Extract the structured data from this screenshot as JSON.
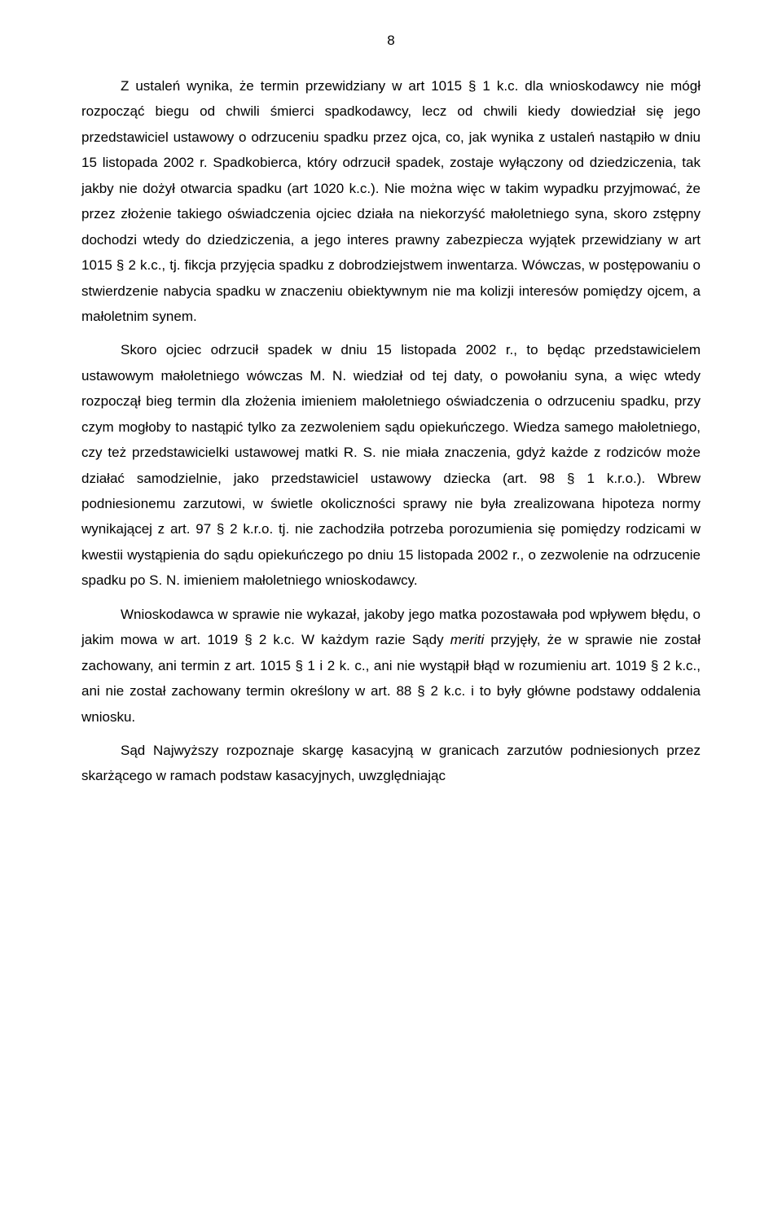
{
  "meta": {
    "page_number": "8"
  },
  "paragraphs": {
    "p1_a": "Z ustaleń wynika, że termin przewidziany w art 1015 § 1 k.c. dla wnioskodawcy nie mógł rozpocząć biegu od chwili śmierci spadkodawcy, lecz od chwili kiedy dowiedział się jego przedstawiciel ustawowy o odrzuceniu spadku przez ojca, co, jak wynika z ustaleń nastąpiło w dniu 15 listopada 2002 r. Spadkobierca, który odrzucił spadek, zostaje wyłączony od dziedziczenia, tak jakby nie dożył otwarcia spadku (art 1020 k.c.). Nie można więc w takim wypadku przyjmować, że przez złożenie takiego oświadczenia ojciec działa na niekorzyść małoletniego syna, skoro zstępny dochodzi wtedy do dziedziczenia, a jego interes prawny zabezpiecza wyjątek przewidziany w art 1015 § 2 k.c., tj. fikcja przyjęcia spadku z dobrodziejstwem inwentarza. Wówczas, w postępowaniu o stwierdzenie nabycia spadku w znaczeniu obiektywnym nie ma kolizji interesów pomiędzy ojcem, a małoletnim synem.",
    "p2_a": "Skoro ojciec odrzucił spadek w dniu 15 listopada 2002 r., to będąc przedstawicielem ustawowym małoletniego wówczas M. N. wiedział od tej daty, o powołaniu syna, a więc wtedy rozpoczął bieg termin dla złożenia imieniem małoletniego oświadczenia o odrzuceniu spadku, przy czym mogłoby to nastąpić tylko za zezwoleniem sądu opiekuńczego. Wiedza samego małoletniego, czy też przedstawicielki ustawowej matki R. S. nie miała znaczenia, gdyż każde z rodziców może działać samodzielnie, jako przedstawiciel ustawowy dziecka (art. 98 § 1 k.r.o.). Wbrew podniesionemu zarzutowi, w świetle okoliczności sprawy nie była zrealizowana hipoteza normy wynikającej z art. 97 § 2 k.r.o. tj. nie zachodziła potrzeba porozumienia się pomiędzy rodzicami w kwestii wystąpienia do sądu opiekuńczego po dniu 15 listopada 2002 r., o zezwolenie na odrzucenie spadku po S. N. imieniem małoletniego wnioskodawcy.",
    "p3_a": "Wnioskodawca w sprawie nie wykazał, jakoby jego matka pozostawała pod wpływem błędu, o jakim mowa w art. 1019 § 2 k.c. W każdym razie Sądy ",
    "p3_b": "meriti",
    "p3_c": " przyjęły, że w sprawie nie został zachowany, ani termin z art. 1015 § 1 i 2 k. c., ani nie wystąpił błąd w rozumieniu art. 1019 § 2 k.c., ani nie został zachowany termin określony w art. 88 § 2 k.c. i to były główne podstawy oddalenia wniosku.",
    "p4_a": "Sąd Najwyższy rozpoznaje skargę kasacyjną w granicach zarzutów podniesionych przez skarżącego w ramach podstaw kasacyjnych, uwzględniając"
  }
}
